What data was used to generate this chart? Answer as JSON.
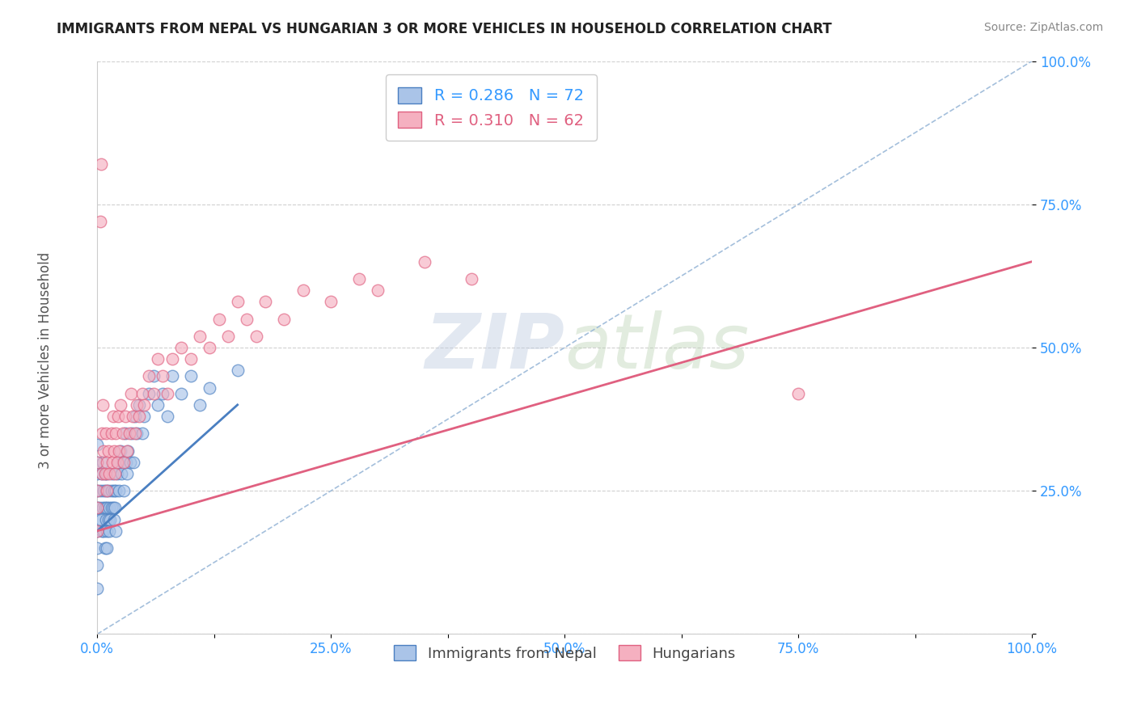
{
  "title": "IMMIGRANTS FROM NEPAL VS HUNGARIAN 3 OR MORE VEHICLES IN HOUSEHOLD CORRELATION CHART",
  "source": "Source: ZipAtlas.com",
  "ylabel": "3 or more Vehicles in Household",
  "legend_label1": "Immigrants from Nepal",
  "legend_label2": "Hungarians",
  "r1": 0.286,
  "n1": 72,
  "r2": 0.31,
  "n2": 62,
  "color1": "#aac4e8",
  "color2": "#f5b0c0",
  "trendline1_color": "#4a7fc1",
  "trendline2_color": "#e06080",
  "refline_color": "#9ab8d8",
  "xlim": [
    0,
    1
  ],
  "ylim": [
    0,
    1
  ],
  "xtick_labels": [
    "0.0%",
    "",
    "25.0%",
    "",
    "50.0%",
    "",
    "75.0%",
    "",
    "100.0%"
  ],
  "xtick_values": [
    0,
    0.125,
    0.25,
    0.375,
    0.5,
    0.625,
    0.75,
    0.875,
    1.0
  ],
  "ytick_labels": [
    "100.0%",
    "75.0%",
    "50.0%",
    "25.0%",
    ""
  ],
  "ytick_values": [
    1.0,
    0.75,
    0.5,
    0.25,
    0.0
  ],
  "watermark_zip": "ZIP",
  "watermark_atlas": "atlas",
  "background_color": "#ffffff",
  "scatter1_x": [
    0.0,
    0.0,
    0.0,
    0.0,
    0.0,
    0.0,
    0.0,
    0.0,
    0.0,
    0.0,
    0.002,
    0.003,
    0.004,
    0.005,
    0.005,
    0.006,
    0.006,
    0.007,
    0.007,
    0.008,
    0.008,
    0.008,
    0.009,
    0.009,
    0.01,
    0.01,
    0.01,
    0.01,
    0.012,
    0.012,
    0.013,
    0.013,
    0.014,
    0.015,
    0.015,
    0.016,
    0.017,
    0.018,
    0.018,
    0.019,
    0.02,
    0.02,
    0.021,
    0.022,
    0.023,
    0.025,
    0.026,
    0.027,
    0.028,
    0.03,
    0.031,
    0.032,
    0.033,
    0.035,
    0.037,
    0.039,
    0.04,
    0.042,
    0.045,
    0.048,
    0.05,
    0.055,
    0.06,
    0.065,
    0.07,
    0.075,
    0.08,
    0.09,
    0.1,
    0.11,
    0.12,
    0.15
  ],
  "scatter1_y": [
    0.12,
    0.15,
    0.18,
    0.2,
    0.22,
    0.25,
    0.28,
    0.3,
    0.33,
    0.08,
    0.22,
    0.25,
    0.2,
    0.28,
    0.18,
    0.3,
    0.22,
    0.25,
    0.18,
    0.28,
    0.22,
    0.15,
    0.2,
    0.25,
    0.28,
    0.22,
    0.18,
    0.15,
    0.25,
    0.2,
    0.22,
    0.18,
    0.2,
    0.25,
    0.22,
    0.28,
    0.22,
    0.25,
    0.2,
    0.22,
    0.25,
    0.18,
    0.28,
    0.3,
    0.25,
    0.32,
    0.28,
    0.3,
    0.25,
    0.35,
    0.3,
    0.28,
    0.32,
    0.3,
    0.35,
    0.3,
    0.38,
    0.35,
    0.4,
    0.35,
    0.38,
    0.42,
    0.45,
    0.4,
    0.42,
    0.38,
    0.45,
    0.42,
    0.45,
    0.4,
    0.43,
    0.46
  ],
  "scatter2_x": [
    0.0,
    0.0,
    0.0,
    0.0,
    0.005,
    0.005,
    0.006,
    0.007,
    0.008,
    0.009,
    0.01,
    0.01,
    0.012,
    0.013,
    0.015,
    0.016,
    0.017,
    0.018,
    0.019,
    0.02,
    0.021,
    0.022,
    0.023,
    0.025,
    0.027,
    0.028,
    0.03,
    0.032,
    0.034,
    0.036,
    0.038,
    0.04,
    0.042,
    0.045,
    0.048,
    0.05,
    0.055,
    0.06,
    0.065,
    0.07,
    0.075,
    0.08,
    0.09,
    0.1,
    0.11,
    0.12,
    0.13,
    0.14,
    0.15,
    0.16,
    0.17,
    0.18,
    0.2,
    0.22,
    0.25,
    0.28,
    0.3,
    0.35,
    0.4,
    0.75,
    0.003,
    0.004
  ],
  "scatter2_y": [
    0.18,
    0.22,
    0.25,
    0.3,
    0.28,
    0.35,
    0.4,
    0.32,
    0.28,
    0.35,
    0.3,
    0.25,
    0.32,
    0.28,
    0.35,
    0.3,
    0.38,
    0.32,
    0.28,
    0.35,
    0.3,
    0.38,
    0.32,
    0.4,
    0.35,
    0.3,
    0.38,
    0.32,
    0.35,
    0.42,
    0.38,
    0.35,
    0.4,
    0.38,
    0.42,
    0.4,
    0.45,
    0.42,
    0.48,
    0.45,
    0.42,
    0.48,
    0.5,
    0.48,
    0.52,
    0.5,
    0.55,
    0.52,
    0.58,
    0.55,
    0.52,
    0.58,
    0.55,
    0.6,
    0.58,
    0.62,
    0.6,
    0.65,
    0.62,
    0.42,
    0.72,
    0.82
  ],
  "trendline1_x": [
    0.0,
    0.15
  ],
  "trendline1_y": [
    0.18,
    0.4
  ],
  "trendline2_x": [
    0.0,
    1.0
  ],
  "trendline2_y": [
    0.18,
    0.65
  ],
  "refline_x": [
    0.0,
    1.0
  ],
  "refline_y": [
    0.0,
    1.0
  ]
}
